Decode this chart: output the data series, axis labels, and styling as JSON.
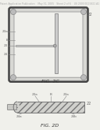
{
  "bg_color": "#f0f0eb",
  "header_text": "Patent Application Publication    May 31, 2005   Sheet 2 of 6    US 2005/0115821 A1",
  "header_fontsize": 2.2,
  "header_color": "#aaaaaa",
  "fig2c_label": "FIG. 2C",
  "fig2d_label": "FIG. 2D",
  "label_fontsize": 4.5,
  "corner_ref": "22",
  "frame_bg": "#f8f8f5",
  "frame_border_outer": "#666666",
  "frame_border_inner": "#aaaaaa",
  "rod_color": "#cccccc",
  "rod_edge": "#777777",
  "ref_color": "#666666",
  "slab_fill": "#c0c0bc",
  "slab_edge": "#777777"
}
